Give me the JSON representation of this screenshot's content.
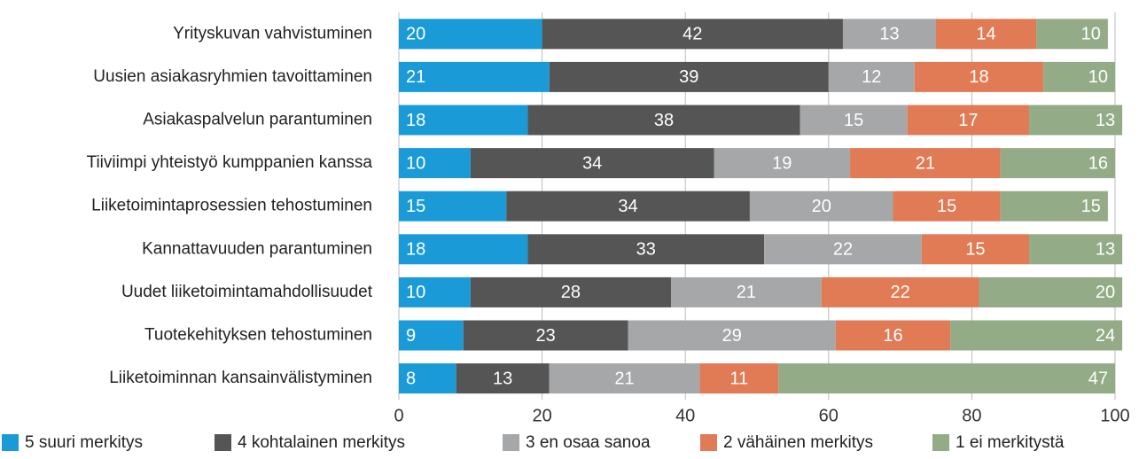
{
  "chart_data": {
    "type": "stacked_bar_horizontal",
    "categories": [
      "Yrityskuvan vahvistuminen",
      "Uusien asiakasryhmien tavoittaminen",
      "Asiakaspalvelun parantuminen",
      "Tiiviimpi yhteistyö kumppanien kanssa",
      "Liiketoimintaprosessien tehostuminen",
      "Kannattavuuden parantuminen",
      "Uudet liiketoimintamahdollisuudet",
      "Tuotekehityksen tehostuminen",
      "Liiketoiminnan kansainvälistyminen"
    ],
    "series": [
      {
        "name": "5 suuri merkitys",
        "color": "#1a9bd7",
        "values": [
          20,
          21,
          18,
          10,
          15,
          18,
          10,
          9,
          8
        ]
      },
      {
        "name": "4 kohtalainen merkitys",
        "color": "#555556",
        "values": [
          42,
          39,
          38,
          34,
          34,
          33,
          28,
          23,
          13
        ]
      },
      {
        "name": "3 en osaa sanoa",
        "color": "#a6a7a8",
        "values": [
          13,
          12,
          15,
          19,
          20,
          22,
          21,
          29,
          21
        ]
      },
      {
        "name": "2 vähäinen merkitys",
        "color": "#e07b55",
        "values": [
          14,
          18,
          17,
          21,
          15,
          15,
          22,
          16,
          11
        ]
      },
      {
        "name": "1 ei merkitystä",
        "color": "#93ab86",
        "values": [
          10,
          10,
          13,
          16,
          15,
          13,
          20,
          24,
          47
        ]
      }
    ],
    "xlim": [
      0,
      100
    ],
    "xticks": [
      0,
      20,
      40,
      60,
      80,
      100
    ],
    "grid": true
  }
}
